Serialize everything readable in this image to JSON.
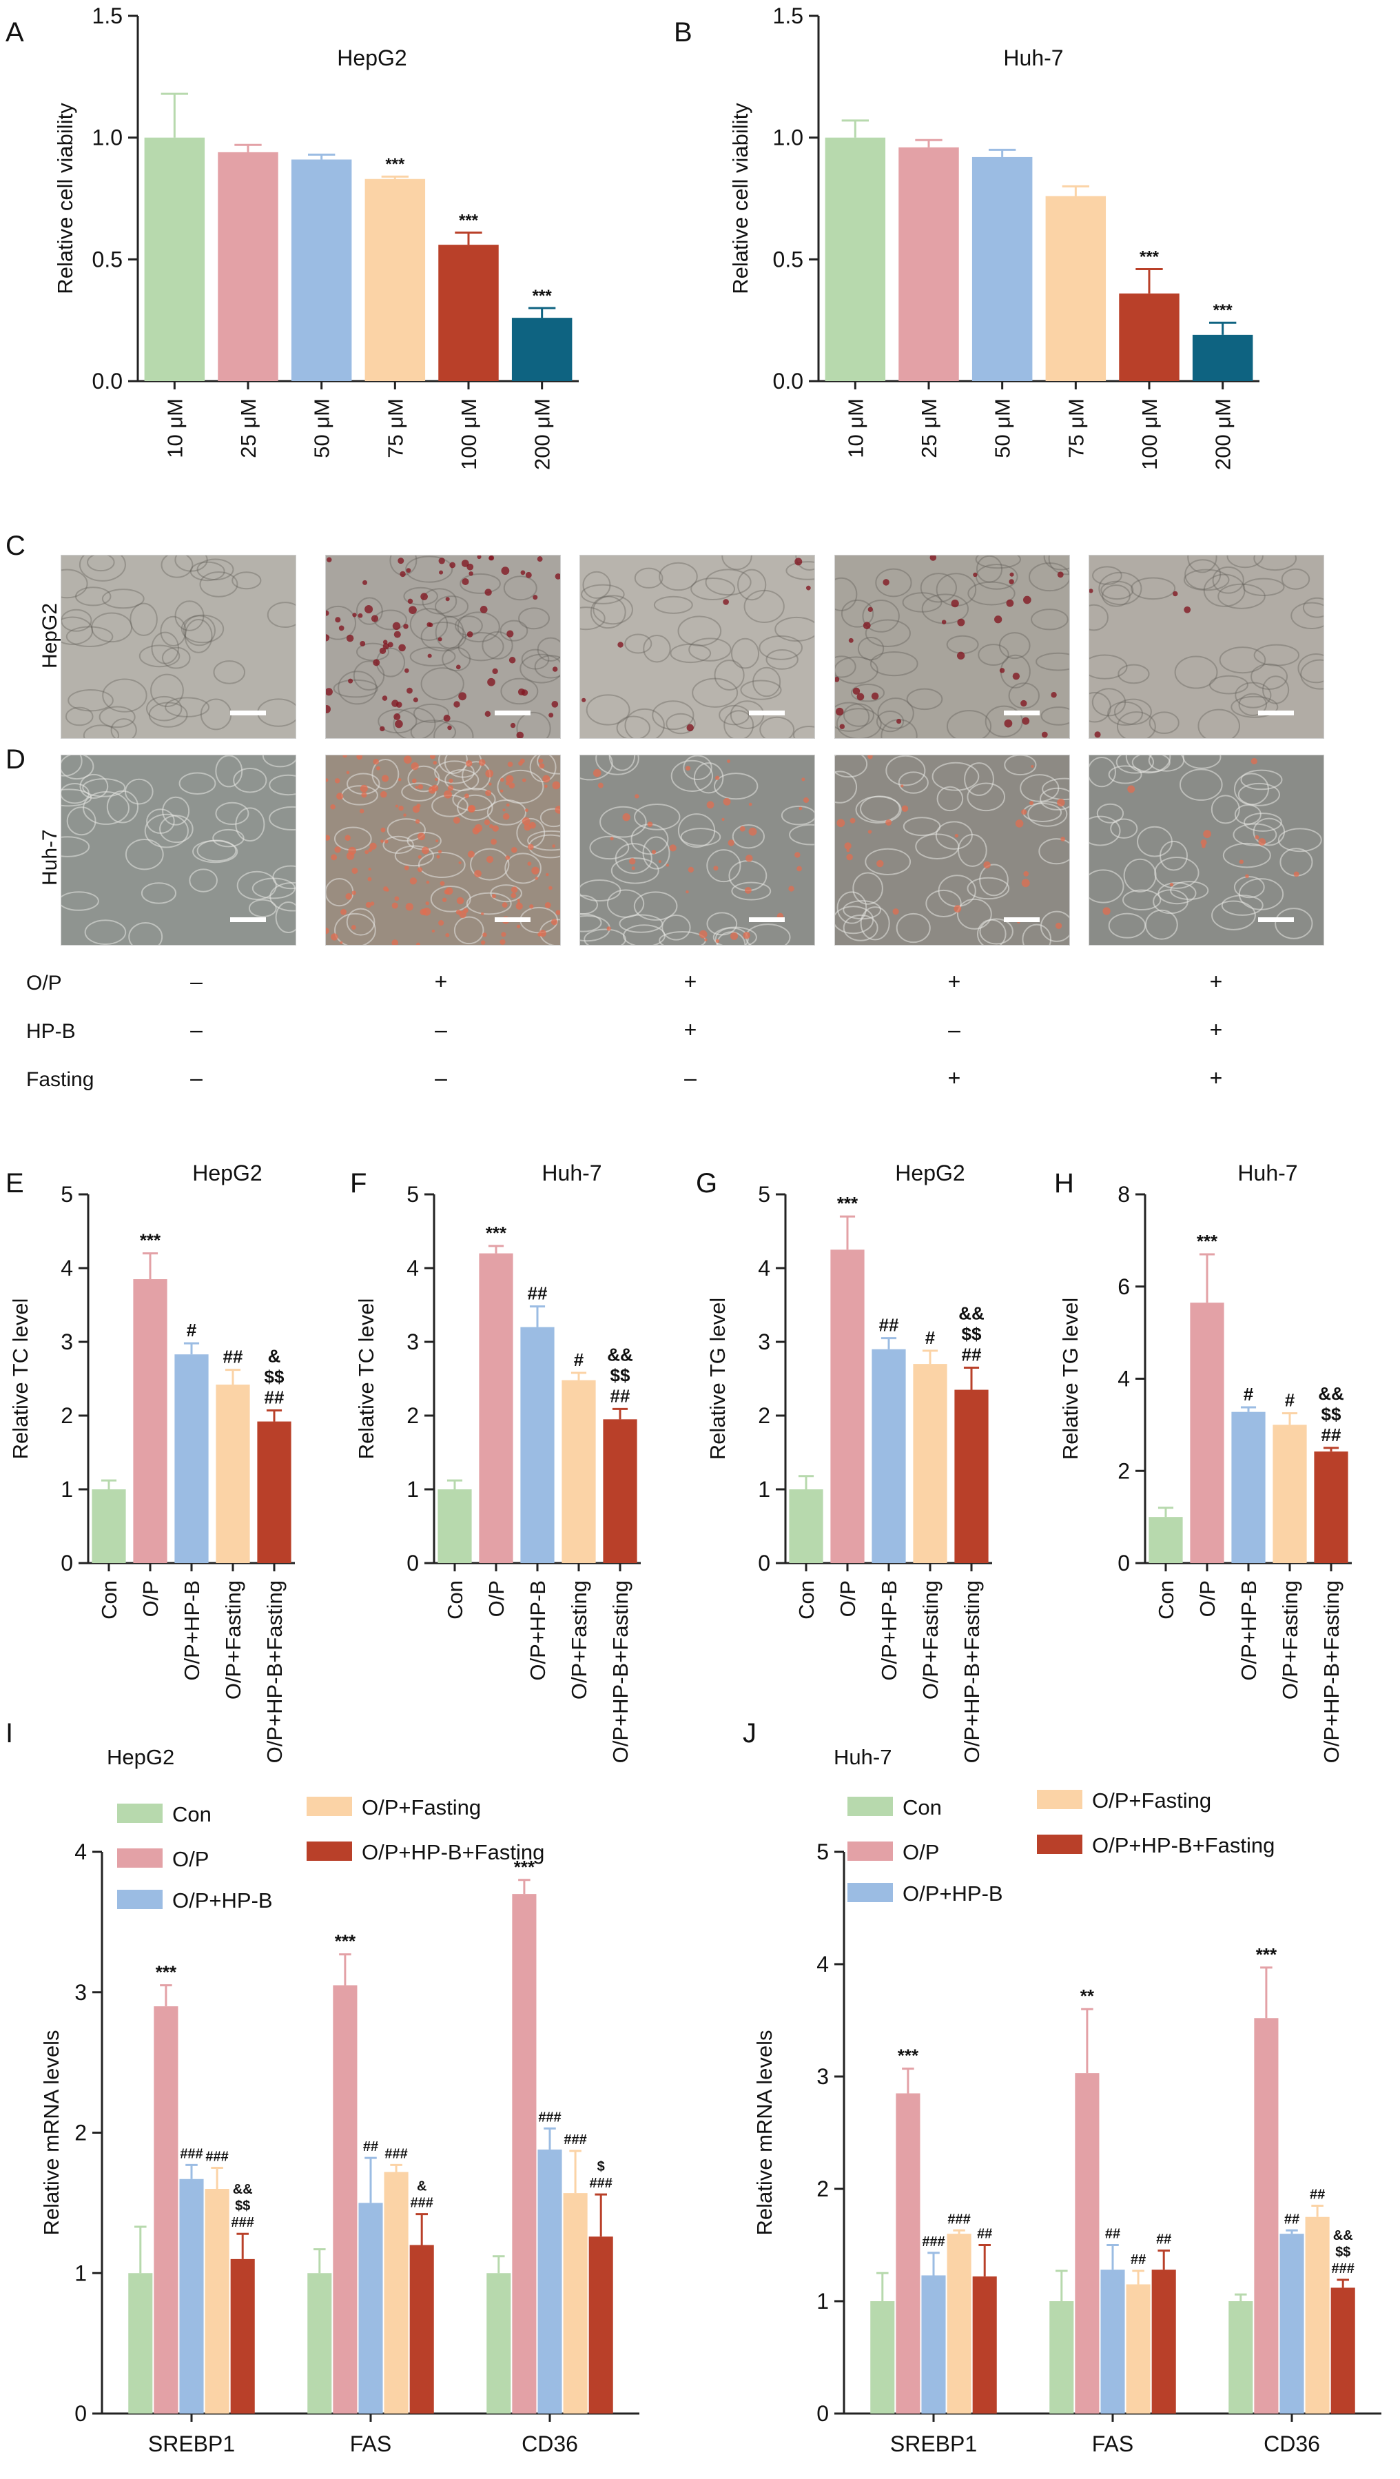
{
  "colors": {
    "green": "#b7d9ad",
    "pink": "#e3a1a6",
    "blue": "#9bbce3",
    "peach": "#fbd3a6",
    "red": "#b94029",
    "teal": "#0e6381",
    "axis": "#222222"
  },
  "chart_data": [
    {
      "id": "A",
      "type": "bar",
      "title": "HepG2",
      "ylabel": "Relative cell viability",
      "xlabel": "",
      "ylim": [
        0,
        1.5
      ],
      "yticks": [
        "0.0",
        "0.5",
        "1.0",
        "1.5"
      ],
      "categories": [
        "10 μM",
        "25 μM",
        "50 μM",
        "75 μM",
        "100 μM",
        "200 μM"
      ],
      "values": [
        1.0,
        0.94,
        0.91,
        0.83,
        0.56,
        0.26
      ],
      "errors": [
        0.18,
        0.03,
        0.02,
        0.01,
        0.05,
        0.04
      ],
      "annotations": [
        "",
        "",
        "",
        "***",
        "***",
        "***"
      ],
      "colors": [
        "#b7d9ad",
        "#e3a1a6",
        "#9bbce3",
        "#fbd3a6",
        "#b94029",
        "#0e6381"
      ]
    },
    {
      "id": "B",
      "type": "bar",
      "title": "Huh-7",
      "ylabel": "Relative cell viability",
      "xlabel": "",
      "ylim": [
        0,
        1.5
      ],
      "yticks": [
        "0.0",
        "0.5",
        "1.0",
        "1.5"
      ],
      "categories": [
        "10 μM",
        "25 μM",
        "50 μM",
        "75 μM",
        "100 μM",
        "200 μM"
      ],
      "values": [
        1.0,
        0.96,
        0.92,
        0.76,
        0.36,
        0.19
      ],
      "errors": [
        0.07,
        0.03,
        0.03,
        0.04,
        0.1,
        0.05
      ],
      "annotations": [
        "",
        "",
        "",
        "",
        "***",
        "***"
      ],
      "colors": [
        "#b7d9ad",
        "#e3a1a6",
        "#9bbce3",
        "#fbd3a6",
        "#b94029",
        "#0e6381"
      ]
    },
    {
      "id": "E",
      "type": "bar",
      "title": "HepG2",
      "ylabel": "Relative TC level",
      "xlabel": "",
      "ylim": [
        0,
        5
      ],
      "yticks": [
        "0",
        "1",
        "2",
        "3",
        "4",
        "5"
      ],
      "categories": [
        "Con",
        "O/P",
        "O/P+HP-B",
        "O/P+Fasting",
        "O/P+HP-B+Fasting"
      ],
      "values": [
        1.0,
        3.85,
        2.83,
        2.42,
        1.92
      ],
      "errors": [
        0.12,
        0.35,
        0.15,
        0.2,
        0.15
      ],
      "annotations": [
        "",
        "***",
        "#",
        "##",
        "&\n$$\n##"
      ],
      "colors": [
        "#b7d9ad",
        "#e3a1a6",
        "#9bbce3",
        "#fbd3a6",
        "#b94029"
      ]
    },
    {
      "id": "F",
      "type": "bar",
      "title": "Huh-7",
      "ylabel": "Relative TC level",
      "xlabel": "",
      "ylim": [
        0,
        5
      ],
      "yticks": [
        "0",
        "1",
        "2",
        "3",
        "4",
        "5"
      ],
      "categories": [
        "Con",
        "O/P",
        "O/P+HP-B",
        "O/P+Fasting",
        "O/P+HP-B+Fasting"
      ],
      "values": [
        1.0,
        4.2,
        3.2,
        2.48,
        1.95
      ],
      "errors": [
        0.12,
        0.1,
        0.28,
        0.1,
        0.14
      ],
      "annotations": [
        "",
        "***",
        "##",
        "#",
        "&&\n$$\n##"
      ],
      "colors": [
        "#b7d9ad",
        "#e3a1a6",
        "#9bbce3",
        "#fbd3a6",
        "#b94029"
      ]
    },
    {
      "id": "G",
      "type": "bar",
      "title": "HepG2",
      "ylabel": "Relative TG level",
      "xlabel": "",
      "ylim": [
        0,
        5
      ],
      "yticks": [
        "0",
        "1",
        "2",
        "3",
        "4",
        "5"
      ],
      "categories": [
        "Con",
        "O/P",
        "O/P+HP-B",
        "O/P+Fasting",
        "O/P+HP-B+Fasting"
      ],
      "values": [
        1.0,
        4.25,
        2.9,
        2.7,
        2.35
      ],
      "errors": [
        0.18,
        0.45,
        0.15,
        0.18,
        0.3
      ],
      "annotations": [
        "",
        "***",
        "##",
        "#",
        "&&\n$$\n##"
      ],
      "colors": [
        "#b7d9ad",
        "#e3a1a6",
        "#9bbce3",
        "#fbd3a6",
        "#b94029"
      ]
    },
    {
      "id": "H",
      "type": "bar",
      "title": "Huh-7",
      "ylabel": "Relative TG level",
      "xlabel": "",
      "ylim": [
        0,
        8
      ],
      "yticks": [
        "0",
        "2",
        "4",
        "6",
        "8"
      ],
      "categories": [
        "Con",
        "O/P",
        "O/P+HP-B",
        "O/P+Fasting",
        "O/P+HP-B+Fasting"
      ],
      "values": [
        1.0,
        5.65,
        3.28,
        3.0,
        2.42
      ],
      "errors": [
        0.2,
        1.05,
        0.1,
        0.25,
        0.08
      ],
      "annotations": [
        "",
        "***",
        "#",
        "#",
        "&&\n$$\n##"
      ],
      "colors": [
        "#b7d9ad",
        "#e3a1a6",
        "#9bbce3",
        "#fbd3a6",
        "#b94029"
      ]
    },
    {
      "id": "I",
      "type": "bar",
      "title": "HepG2",
      "ylabel": "Relative mRNA levels",
      "xlabel": "",
      "ylim": [
        0,
        4
      ],
      "yticks": [
        "0",
        "1",
        "2",
        "3",
        "4"
      ],
      "categories": [
        "SREBP1",
        "FAS",
        "CD36"
      ],
      "legend": "top-left",
      "series": [
        {
          "name": "Con",
          "color": "#b7d9ad",
          "values": [
            1.0,
            1.0,
            1.0
          ],
          "errors": [
            0.33,
            0.17,
            0.12
          ],
          "annotations": [
            "",
            "",
            ""
          ]
        },
        {
          "name": "O/P",
          "color": "#e3a1a6",
          "values": [
            2.9,
            3.05,
            3.7
          ],
          "errors": [
            0.15,
            0.22,
            0.1
          ],
          "annotations": [
            "***",
            "***",
            "***"
          ]
        },
        {
          "name": "O/P+HP-B",
          "color": "#9bbce3",
          "values": [
            1.67,
            1.5,
            1.88
          ],
          "errors": [
            0.1,
            0.32,
            0.15
          ],
          "annotations": [
            "###",
            "##",
            "###"
          ]
        },
        {
          "name": "O/P+Fasting",
          "color": "#fbd3a6",
          "values": [
            1.6,
            1.72,
            1.57
          ],
          "errors": [
            0.15,
            0.05,
            0.3
          ],
          "annotations": [
            "###",
            "###",
            "###"
          ]
        },
        {
          "name": "O/P+HP-B+Fasting",
          "color": "#b94029",
          "values": [
            1.1,
            1.2,
            1.26
          ],
          "errors": [
            0.18,
            0.22,
            0.3
          ],
          "annotations": [
            "&&\n$$\n###",
            "&\n###",
            "$\n###"
          ]
        }
      ]
    },
    {
      "id": "J",
      "type": "bar",
      "title": "Huh-7",
      "ylabel": "Relative mRNA levels",
      "xlabel": "",
      "ylim": [
        0,
        5
      ],
      "yticks": [
        "0",
        "1",
        "2",
        "3",
        "4",
        "5"
      ],
      "categories": [
        "SREBP1",
        "FAS",
        "CD36"
      ],
      "legend": "top-left",
      "series": [
        {
          "name": "Con",
          "color": "#b7d9ad",
          "values": [
            1.0,
            1.0,
            1.0
          ],
          "errors": [
            0.25,
            0.27,
            0.06
          ],
          "annotations": [
            "",
            "",
            ""
          ]
        },
        {
          "name": "O/P",
          "color": "#e3a1a6",
          "values": [
            2.85,
            3.03,
            3.52
          ],
          "errors": [
            0.22,
            0.57,
            0.45
          ],
          "annotations": [
            "***",
            "**",
            "***"
          ]
        },
        {
          "name": "O/P+HP-B",
          "color": "#9bbce3",
          "values": [
            1.23,
            1.28,
            1.6
          ],
          "errors": [
            0.2,
            0.22,
            0.03
          ],
          "annotations": [
            "###",
            "##",
            "##"
          ]
        },
        {
          "name": "O/P+Fasting",
          "color": "#fbd3a6",
          "values": [
            1.6,
            1.15,
            1.75
          ],
          "errors": [
            0.03,
            0.12,
            0.1
          ],
          "annotations": [
            "###",
            "##",
            "##"
          ]
        },
        {
          "name": "O/P+HP-B+Fasting",
          "color": "#b94029",
          "values": [
            1.22,
            1.28,
            1.12
          ],
          "errors": [
            0.28,
            0.17,
            0.07
          ],
          "annotations": [
            "##",
            "##",
            "&&\n$$\n###"
          ]
        }
      ]
    }
  ],
  "labels": {
    "C": "C",
    "D": "D",
    "row_hepg2": "HepG2",
    "row_huh7": "Huh-7"
  },
  "treatments": {
    "rows": [
      {
        "label": "O/P",
        "signs": [
          "–",
          "+",
          "+",
          "+",
          "+"
        ]
      },
      {
        "label": "HP-B",
        "signs": [
          "–",
          "–",
          "+",
          "–",
          "+"
        ]
      },
      {
        "label": "Fasting",
        "signs": [
          "–",
          "–",
          "–",
          "+",
          "+"
        ]
      }
    ]
  }
}
